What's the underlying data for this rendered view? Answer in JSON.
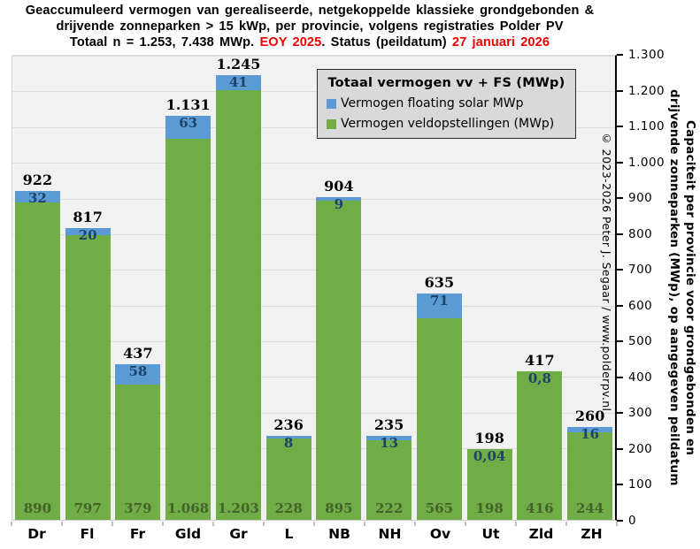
{
  "title": {
    "line1": "Geaccumuleerd vermogen van gerealiseerde, netgekoppelde klassieke grondgebonden &",
    "line2": "drijvende zonneparken > 15 kWp, per provincie, volgens registraties Polder PV",
    "line3_black1": "Totaal n = 1.253, 7.438 MWp. ",
    "line3_red1": "EOY 2025",
    "line3_black2": ". Status (peildatum) ",
    "line3_red2": "27 januari 2026"
  },
  "legend": {
    "title": "Totaal vermogen vv + FS (MWp)",
    "items": [
      {
        "label": "Vermogen floating solar MWp",
        "color": "#5b9bd5"
      },
      {
        "label": "Vermogen veldopstellingen (MWp)",
        "color": "#70ad47"
      }
    ]
  },
  "y_axis": {
    "min": 0,
    "max": 1300,
    "step": 100,
    "tick_labels": [
      "0",
      "100",
      "200",
      "300",
      "400",
      "500",
      "600",
      "700",
      "800",
      "900",
      "1.000",
      "1.100",
      "1.200",
      "1.300"
    ],
    "title_line1": "Capaciteit per provincie voor grondgebonden en",
    "title_line2": "drijvende zonneparken (MWp), op aangegeven peildatum"
  },
  "watermark": "© 2023-2026  Peter J. Segaar / www.polderpv.nl",
  "chart_data": {
    "type": "bar",
    "stacked": true,
    "grid": true,
    "legend_position": "top-right",
    "ylim": [
      0,
      1300
    ],
    "categories": [
      "Dr",
      "Fl",
      "Fr",
      "Gld",
      "Gr",
      "L",
      "NB",
      "NH",
      "Ov",
      "Ut",
      "Zld",
      "ZH"
    ],
    "series": [
      {
        "name": "Vermogen veldopstellingen (MWp)",
        "color": "#70ad47",
        "label_color": "#44622a",
        "values": [
          890,
          797,
          379,
          1068,
          1203,
          228,
          895,
          222,
          565,
          198,
          416,
          244
        ],
        "labels": [
          "890",
          "797",
          "379",
          "1.068",
          "1.203",
          "228",
          "895",
          "222",
          "565",
          "198",
          "416",
          "244"
        ]
      },
      {
        "name": "Vermogen floating solar MWp",
        "color": "#5b9bd5",
        "label_color": "#1f4268",
        "values": [
          32,
          20,
          58,
          63,
          41,
          8,
          9,
          13,
          71,
          0.04,
          0.8,
          16
        ],
        "labels": [
          "32",
          "20",
          "58",
          "63",
          "41",
          "8",
          "9",
          "13",
          "71",
          "0,04",
          "0,8",
          "16"
        ]
      }
    ],
    "totals": [
      922,
      817,
      437,
      1131,
      1245,
      236,
      904,
      235,
      635,
      198,
      417,
      260
    ],
    "total_labels": [
      "922",
      "817",
      "437",
      "1.131",
      "1.245",
      "236",
      "904",
      "235",
      "635",
      "198",
      "417",
      "260"
    ]
  }
}
